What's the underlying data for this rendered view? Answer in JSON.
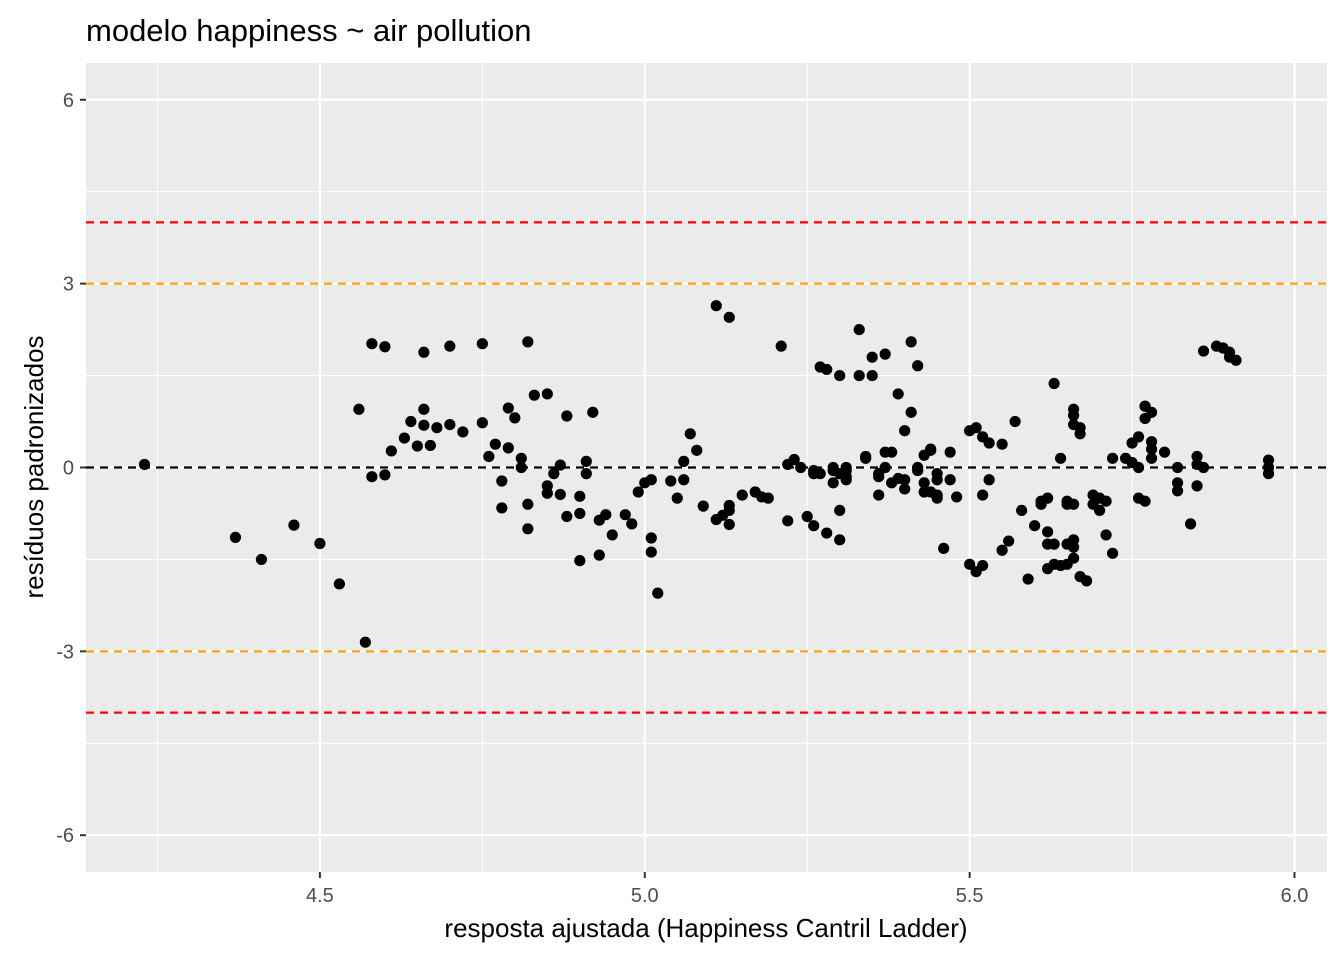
{
  "chart_data": {
    "type": "scatter",
    "title": "modelo happiness ~ air pollution",
    "xlabel": "resposta ajustada (Happiness Cantril Ladder)",
    "ylabel": "resíduos padronizados",
    "xlim": [
      4.14,
      6.05
    ],
    "ylim": [
      -6.6,
      6.6
    ],
    "x_ticks": [
      4.5,
      5.0,
      5.5,
      6.0
    ],
    "x_tick_labels": [
      "4.5",
      "5.0",
      "5.5",
      "6.0"
    ],
    "y_ticks": [
      -6,
      -3,
      0,
      3,
      6
    ],
    "y_tick_labels": [
      "-6",
      "-3",
      "0",
      "3",
      "6"
    ],
    "grid": true,
    "reference_lines": [
      {
        "y": 4,
        "color": "#ff0000",
        "style": "dashed"
      },
      {
        "y": 3,
        "color": "#ffa500",
        "style": "dashed"
      },
      {
        "y": 0,
        "color": "#000000",
        "style": "dashed"
      },
      {
        "y": -3,
        "color": "#ffa500",
        "style": "dashed"
      },
      {
        "y": -4,
        "color": "#ff0000",
        "style": "dashed"
      }
    ],
    "colors": {
      "panel": "#ebebeb",
      "grid": "#ffffff",
      "points": "#000000"
    },
    "points": [
      [
        4.23,
        0.05
      ],
      [
        4.37,
        -1.14
      ],
      [
        4.41,
        -1.5
      ],
      [
        4.46,
        -0.94
      ],
      [
        4.5,
        -1.24
      ],
      [
        4.53,
        -1.9
      ],
      [
        4.56,
        0.95
      ],
      [
        4.57,
        -2.85
      ],
      [
        4.58,
        2.02
      ],
      [
        4.58,
        -0.15
      ],
      [
        4.6,
        1.97
      ],
      [
        4.6,
        -0.12
      ],
      [
        4.61,
        0.27
      ],
      [
        4.63,
        0.48
      ],
      [
        4.64,
        0.75
      ],
      [
        4.65,
        0.35
      ],
      [
        4.66,
        1.88
      ],
      [
        4.66,
        0.95
      ],
      [
        4.66,
        0.69
      ],
      [
        4.67,
        0.36
      ],
      [
        4.68,
        0.65
      ],
      [
        4.7,
        1.98
      ],
      [
        4.7,
        0.7
      ],
      [
        4.72,
        0.58
      ],
      [
        4.75,
        2.02
      ],
      [
        4.75,
        0.73
      ],
      [
        4.76,
        0.18
      ],
      [
        4.77,
        0.38
      ],
      [
        4.78,
        -0.22
      ],
      [
        4.78,
        -0.66
      ],
      [
        4.79,
        0.32
      ],
      [
        4.79,
        0.97
      ],
      [
        4.8,
        0.81
      ],
      [
        4.81,
        0.0
      ],
      [
        4.81,
        0.15
      ],
      [
        4.82,
        -0.6
      ],
      [
        4.82,
        -1.0
      ],
      [
        4.82,
        2.05
      ],
      [
        4.83,
        1.18
      ],
      [
        4.85,
        -0.3
      ],
      [
        4.85,
        -0.42
      ],
      [
        4.85,
        1.2
      ],
      [
        4.86,
        -0.1
      ],
      [
        4.87,
        0.04
      ],
      [
        4.87,
        -0.44
      ],
      [
        4.88,
        -0.8
      ],
      [
        4.88,
        0.84
      ],
      [
        4.9,
        -1.52
      ],
      [
        4.9,
        -0.47
      ],
      [
        4.9,
        -0.75
      ],
      [
        4.91,
        0.1
      ],
      [
        4.91,
        -0.1
      ],
      [
        4.92,
        0.9
      ],
      [
        4.93,
        -0.86
      ],
      [
        4.93,
        -1.43
      ],
      [
        4.94,
        -0.77
      ],
      [
        4.95,
        -1.1
      ],
      [
        4.97,
        -0.77
      ],
      [
        4.98,
        -0.92
      ],
      [
        4.99,
        -0.4
      ],
      [
        5.0,
        -0.25
      ],
      [
        5.01,
        -0.2
      ],
      [
        5.01,
        -1.15
      ],
      [
        5.01,
        -1.38
      ],
      [
        5.02,
        -2.05
      ],
      [
        5.04,
        -0.22
      ],
      [
        5.05,
        -0.5
      ],
      [
        5.06,
        -0.2
      ],
      [
        5.06,
        0.1
      ],
      [
        5.07,
        0.55
      ],
      [
        5.08,
        0.28
      ],
      [
        5.09,
        -0.63
      ],
      [
        5.11,
        -0.85
      ],
      [
        5.11,
        2.64
      ],
      [
        5.12,
        -0.78
      ],
      [
        5.13,
        2.45
      ],
      [
        5.13,
        -0.7
      ],
      [
        5.13,
        -0.93
      ],
      [
        5.13,
        -0.62
      ],
      [
        5.15,
        -0.45
      ],
      [
        5.17,
        -0.4
      ],
      [
        5.18,
        -0.48
      ],
      [
        5.19,
        -0.5
      ],
      [
        5.21,
        1.98
      ],
      [
        5.22,
        0.05
      ],
      [
        5.22,
        -0.87
      ],
      [
        5.23,
        0.13
      ],
      [
        5.24,
        0.0
      ],
      [
        5.25,
        -0.8
      ],
      [
        5.26,
        -0.05
      ],
      [
        5.26,
        -0.1
      ],
      [
        5.26,
        -0.95
      ],
      [
        5.27,
        1.64
      ],
      [
        5.27,
        -0.1
      ],
      [
        5.28,
        1.6
      ],
      [
        5.28,
        -1.07
      ],
      [
        5.29,
        0.0
      ],
      [
        5.29,
        -0.05
      ],
      [
        5.29,
        -0.25
      ],
      [
        5.3,
        -0.7
      ],
      [
        5.3,
        -1.18
      ],
      [
        5.3,
        1.5
      ],
      [
        5.3,
        -0.1
      ],
      [
        5.31,
        0.0
      ],
      [
        5.31,
        -0.15
      ],
      [
        5.31,
        -0.2
      ],
      [
        5.31,
        -0.05
      ],
      [
        5.33,
        1.5
      ],
      [
        5.33,
        2.25
      ],
      [
        5.34,
        0.15
      ],
      [
        5.34,
        0.18
      ],
      [
        5.35,
        1.5
      ],
      [
        5.35,
        1.8
      ],
      [
        5.36,
        -0.1
      ],
      [
        5.36,
        -0.15
      ],
      [
        5.36,
        -0.45
      ],
      [
        5.37,
        0.0
      ],
      [
        5.37,
        1.85
      ],
      [
        5.37,
        0.25
      ],
      [
        5.38,
        -0.25
      ],
      [
        5.38,
        0.25
      ],
      [
        5.39,
        1.2
      ],
      [
        5.39,
        -0.18
      ],
      [
        5.4,
        0.6
      ],
      [
        5.4,
        -0.35
      ],
      [
        5.4,
        -0.2
      ],
      [
        5.41,
        2.05
      ],
      [
        5.41,
        0.9
      ],
      [
        5.42,
        1.66
      ],
      [
        5.42,
        -0.05
      ],
      [
        5.42,
        0.0
      ],
      [
        5.43,
        -0.25
      ],
      [
        5.43,
        -0.4
      ],
      [
        5.43,
        0.2
      ],
      [
        5.44,
        0.3
      ],
      [
        5.44,
        0.28
      ],
      [
        5.44,
        -0.4
      ],
      [
        5.45,
        -0.1
      ],
      [
        5.45,
        -0.2
      ],
      [
        5.45,
        -0.45
      ],
      [
        5.45,
        -0.5
      ],
      [
        5.46,
        -1.32
      ],
      [
        5.47,
        0.25
      ],
      [
        5.47,
        -0.2
      ],
      [
        5.48,
        -0.48
      ],
      [
        5.5,
        -1.58
      ],
      [
        5.5,
        0.6
      ],
      [
        5.51,
        -1.7
      ],
      [
        5.51,
        0.65
      ],
      [
        5.52,
        -0.45
      ],
      [
        5.52,
        0.5
      ],
      [
        5.52,
        -1.6
      ],
      [
        5.53,
        0.4
      ],
      [
        5.53,
        -0.2
      ],
      [
        5.55,
        -1.35
      ],
      [
        5.55,
        0.38
      ],
      [
        5.56,
        -1.2
      ],
      [
        5.57,
        0.75
      ],
      [
        5.58,
        -0.7
      ],
      [
        5.59,
        -1.82
      ],
      [
        5.6,
        -0.95
      ],
      [
        5.61,
        -0.6
      ],
      [
        5.61,
        -0.55
      ],
      [
        5.62,
        -1.65
      ],
      [
        5.62,
        -0.5
      ],
      [
        5.62,
        -1.05
      ],
      [
        5.62,
        -1.25
      ],
      [
        5.63,
        1.37
      ],
      [
        5.63,
        -1.25
      ],
      [
        5.63,
        -1.58
      ],
      [
        5.64,
        0.15
      ],
      [
        5.64,
        -1.6
      ],
      [
        5.65,
        -0.6
      ],
      [
        5.65,
        -1.25
      ],
      [
        5.65,
        -0.55
      ],
      [
        5.65,
        -1.58
      ],
      [
        5.66,
        -1.48
      ],
      [
        5.66,
        -0.6
      ],
      [
        5.66,
        -1.18
      ],
      [
        5.66,
        -1.3
      ],
      [
        5.66,
        0.95
      ],
      [
        5.66,
        0.85
      ],
      [
        5.66,
        0.7
      ],
      [
        5.67,
        0.65
      ],
      [
        5.67,
        0.55
      ],
      [
        5.67,
        -1.78
      ],
      [
        5.68,
        -1.85
      ],
      [
        5.69,
        -0.6
      ],
      [
        5.69,
        -0.45
      ],
      [
        5.7,
        -0.5
      ],
      [
        5.7,
        -0.7
      ],
      [
        5.71,
        -0.55
      ],
      [
        5.71,
        -1.1
      ],
      [
        5.72,
        -1.4
      ],
      [
        5.72,
        0.15
      ],
      [
        5.74,
        0.15
      ],
      [
        5.75,
        0.08
      ],
      [
        5.75,
        0.4
      ],
      [
        5.76,
        0.5
      ],
      [
        5.76,
        0.0
      ],
      [
        5.76,
        -0.5
      ],
      [
        5.77,
        1.0
      ],
      [
        5.77,
        1.0
      ],
      [
        5.77,
        0.8
      ],
      [
        5.77,
        -0.55
      ],
      [
        5.78,
        0.9
      ],
      [
        5.78,
        0.3
      ],
      [
        5.78,
        0.15
      ],
      [
        5.78,
        0.42
      ],
      [
        5.8,
        0.25
      ],
      [
        5.82,
        0.0
      ],
      [
        5.82,
        -0.25
      ],
      [
        5.82,
        -0.38
      ],
      [
        5.84,
        -0.92
      ],
      [
        5.85,
        -0.3
      ],
      [
        5.85,
        0.18
      ],
      [
        5.85,
        0.05
      ],
      [
        5.86,
        0.0
      ],
      [
        5.86,
        1.9
      ],
      [
        5.88,
        1.98
      ],
      [
        5.89,
        1.95
      ],
      [
        5.9,
        1.88
      ],
      [
        5.9,
        1.8
      ],
      [
        5.91,
        1.75
      ],
      [
        5.96,
        0.12
      ],
      [
        5.96,
        0.0
      ],
      [
        5.96,
        -0.1
      ]
    ]
  }
}
